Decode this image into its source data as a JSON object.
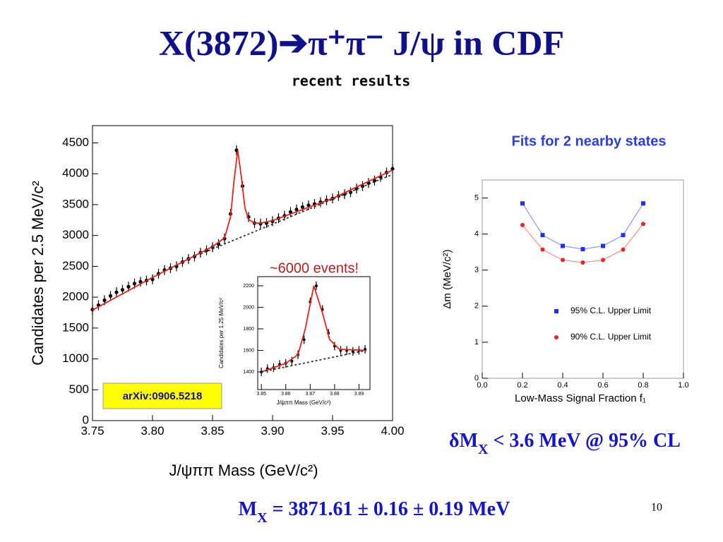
{
  "slide": {
    "title": "X(3872)➔π⁺π⁻ J/ψ in CDF",
    "subtitle": "recent results",
    "events_note": "~6000 events!",
    "arxiv": "arXiv:0906.5218",
    "fits_note": "Fits for 2 nearby states",
    "delta_result": [
      "δM",
      "X",
      " < 3.6 MeV @ 95% CL"
    ],
    "mass_result": [
      "M",
      "X",
      " = 3871.61 ± 0.16 ± 0.19 MeV"
    ],
    "page_number": "10"
  },
  "chart_data": [
    {
      "type": "scatter",
      "xlabel": "J/ψππ Mass (GeV/c²)",
      "ylabel": "Candidates per 2.5 MeV/c²",
      "xlim": [
        3.75,
        4.0
      ],
      "ylim": [
        0,
        4780
      ],
      "xticks": [
        3.75,
        {
          "value": 3.8,
          "label": "3.80"
        },
        3.85,
        {
          "value": 3.9,
          "label": "3.90"
        },
        3.95,
        {
          "value": 4.0,
          "label": "4.00"
        }
      ],
      "yticks": [
        0,
        500,
        1000,
        1500,
        2000,
        2500,
        3000,
        3500,
        4000,
        4500
      ],
      "error": 80,
      "series": [
        {
          "marker": "points",
          "color": "#000000",
          "x": [
            3.75,
            3.755,
            3.76,
            3.765,
            3.77,
            3.775,
            3.78,
            3.785,
            3.79,
            3.795,
            3.8,
            3.805,
            3.81,
            3.815,
            3.82,
            3.825,
            3.83,
            3.835,
            3.84,
            3.845,
            3.85,
            3.855,
            3.86,
            3.865,
            3.87,
            3.875,
            3.88,
            3.885,
            3.89,
            3.895,
            3.9,
            3.905,
            3.91,
            3.915,
            3.92,
            3.925,
            3.93,
            3.935,
            3.94,
            3.945,
            3.95,
            3.955,
            3.96,
            3.965,
            3.97,
            3.975,
            3.98,
            3.985,
            3.99,
            3.995,
            4.0
          ],
          "values": [
            1800,
            1870,
            1950,
            2020,
            2080,
            2120,
            2170,
            2220,
            2250,
            2270,
            2290,
            2380,
            2440,
            2470,
            2500,
            2570,
            2620,
            2660,
            2720,
            2760,
            2810,
            2860,
            2950,
            3350,
            4380,
            3800,
            3300,
            3200,
            3190,
            3200,
            3230,
            3280,
            3320,
            3380,
            3420,
            3460,
            3490,
            3510,
            3540,
            3570,
            3600,
            3640,
            3670,
            3700,
            3760,
            3800,
            3850,
            3890,
            3950,
            4020,
            4080
          ]
        },
        {
          "marker": "line",
          "color": "#e8231e",
          "x": [
            3.75,
            3.8,
            3.85,
            3.86,
            3.865,
            3.868,
            3.871,
            3.874,
            3.877,
            3.88,
            3.885,
            3.89,
            3.9,
            3.95,
            4.0
          ],
          "values": [
            1790,
            2320,
            2820,
            2960,
            3300,
            3900,
            4380,
            3950,
            3450,
            3260,
            3200,
            3200,
            3240,
            3600,
            4060
          ]
        },
        {
          "marker": "dashed",
          "color": "#333333",
          "x": [
            3.84,
            4.0
          ],
          "values": [
            2700,
            3990
          ]
        }
      ]
    },
    {
      "type": "scatter",
      "xlabel": "J/ψππ Mass (GeV/c²)",
      "ylabel": "Candidates per 1.25 MeV/c²",
      "xlim": [
        3.8485,
        3.8945
      ],
      "ylim": [
        1236,
        2285
      ],
      "xticks": [
        3.85,
        3.86,
        3.87,
        3.88,
        3.89
      ],
      "yticks": [
        1400,
        1600,
        1800,
        2000,
        2200
      ],
      "error": 40,
      "series": [
        {
          "marker": "points",
          "color": "#000000",
          "x": [
            3.85,
            3.8525,
            3.855,
            3.8575,
            3.86,
            3.8625,
            3.865,
            3.8675,
            3.87,
            3.8725,
            3.875,
            3.8775,
            3.88,
            3.8825,
            3.885,
            3.8875,
            3.89,
            3.8925
          ],
          "values": [
            1400,
            1430,
            1440,
            1470,
            1480,
            1500,
            1560,
            1700,
            2050,
            2200,
            1980,
            1760,
            1640,
            1600,
            1600,
            1590,
            1600,
            1610
          ]
        },
        {
          "marker": "line",
          "color": "#e8231e",
          "x": [
            3.85,
            3.86,
            3.865,
            3.868,
            3.8715,
            3.875,
            3.878,
            3.882,
            3.893
          ],
          "values": [
            1400,
            1480,
            1560,
            1800,
            2200,
            1950,
            1700,
            1610,
            1600
          ]
        },
        {
          "marker": "dashed",
          "color": "#333333",
          "x": [
            3.85,
            3.893
          ],
          "values": [
            1400,
            1600
          ]
        }
      ]
    },
    {
      "type": "scatter",
      "xlabel": "Low-Mass Signal Fraction f₁",
      "ylabel": "Δm (MeV/c²)",
      "xlim": [
        0,
        1
      ],
      "ylim": [
        0,
        5.5
      ],
      "xticks": [
        {
          "value": 0,
          "label": "0.0"
        },
        0.2,
        0.4,
        0.6,
        0.8,
        {
          "value": 1,
          "label": "1.0"
        }
      ],
      "yticks": [
        0,
        1,
        2,
        3,
        4,
        5
      ],
      "legend": "lower right",
      "series": [
        {
          "name": "95% C.L. Upper Limit",
          "marker": "squares-line",
          "color": "#1f2fff",
          "x": [
            0.2,
            0.3,
            0.4,
            0.5,
            0.6,
            0.7,
            0.8
          ],
          "values": [
            4.85,
            3.97,
            3.67,
            3.58,
            3.67,
            3.97,
            4.85
          ]
        },
        {
          "name": "90% C.L. Upper Limit",
          "marker": "circles-line",
          "color": "#ee2222",
          "x": [
            0.2,
            0.3,
            0.4,
            0.5,
            0.6,
            0.7,
            0.8
          ],
          "values": [
            4.25,
            3.57,
            3.28,
            3.21,
            3.28,
            3.57,
            4.28
          ]
        }
      ]
    }
  ]
}
